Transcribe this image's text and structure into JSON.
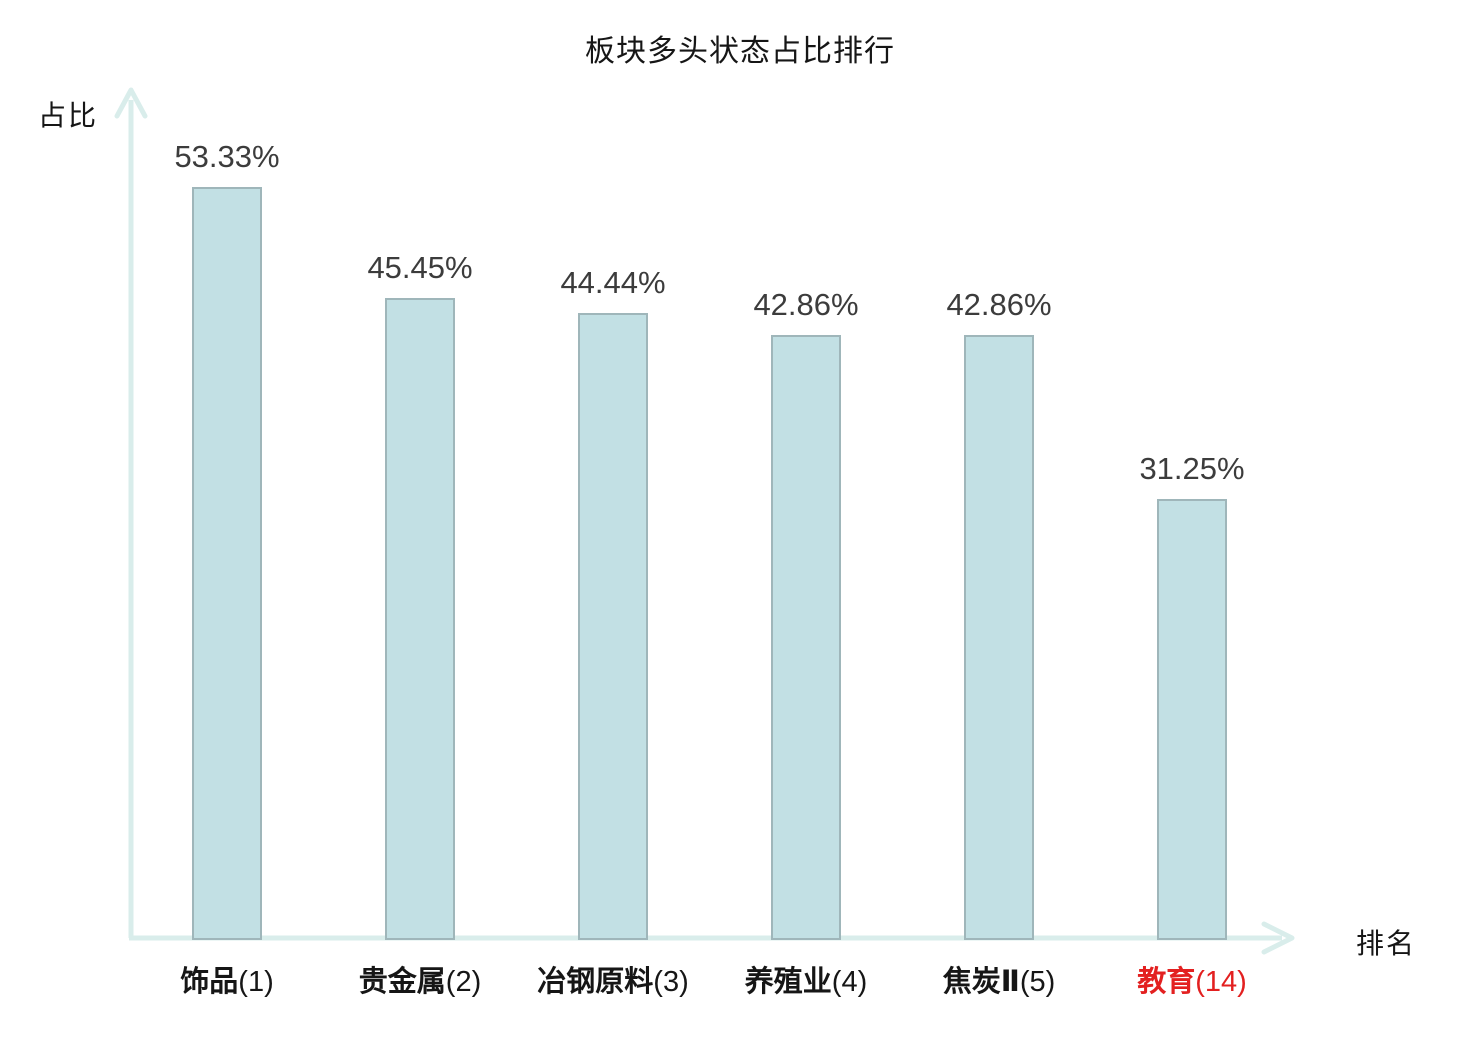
{
  "chart_data": {
    "type": "bar",
    "title": "板块多头状态占比排行",
    "ylabel": "占比",
    "xlabel": "排名",
    "categories": [
      "饰品(1)",
      "贵金属(2)",
      "冶钢原料(3)",
      "养殖业(4)",
      "焦炭Ⅱ(5)",
      "教育(14)"
    ],
    "values": [
      53.33,
      45.45,
      44.44,
      42.86,
      42.86,
      31.25
    ],
    "bars": [
      {
        "name": "饰品",
        "rank": "(1)",
        "value": 53.33,
        "value_label": "53.33%",
        "label_color": "#161616"
      },
      {
        "name": "贵金属",
        "rank": "(2)",
        "value": 45.45,
        "value_label": "45.45%",
        "label_color": "#161616"
      },
      {
        "name": "冶钢原料",
        "rank": "(3)",
        "value": 44.44,
        "value_label": "44.44%",
        "label_color": "#161616"
      },
      {
        "name": "养殖业",
        "rank": "(4)",
        "value": 42.86,
        "value_label": "42.86%",
        "label_color": "#161616"
      },
      {
        "name": "焦炭Ⅱ",
        "rank": "(5)",
        "value": 42.86,
        "value_label": "42.86%",
        "label_color": "#161616"
      },
      {
        "name": "教育",
        "rank": "(14)",
        "value": 31.25,
        "value_label": "31.25%",
        "label_color": "#e32020"
      }
    ],
    "ylim": [
      0,
      60
    ],
    "grid": false,
    "legend": "none",
    "colors": {
      "bar_fill": "#c2e0e4",
      "bar_border": "#9fb6ba",
      "axis": "#d9edeb",
      "value_label": "#3c3c3c",
      "text": "#161616",
      "highlight": "#e32020"
    }
  }
}
